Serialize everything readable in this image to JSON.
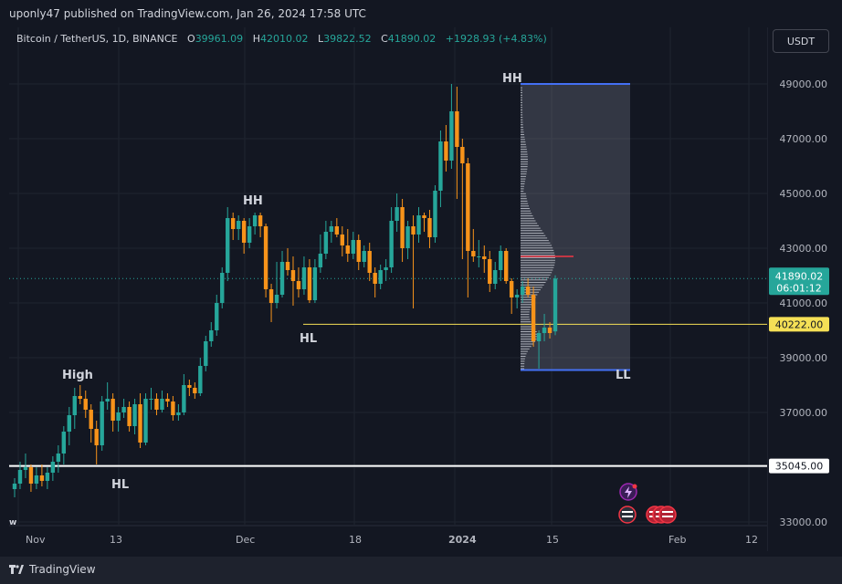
{
  "header": {
    "published": "uponly47 published on TradingView.com, Jan 26, 2024 17:58 UTC"
  },
  "legend": {
    "symbol": "Bitcoin / TetherUS, 1D, BINANCE",
    "o_label": "O",
    "o": "39961.09",
    "h_label": "H",
    "h": "42010.02",
    "l_label": "L",
    "l": "39822.52",
    "c_label": "C",
    "c": "41890.02",
    "change": "+1928.93 (+4.83%)"
  },
  "currency": "USDT",
  "footer": {
    "brand": "TradingView"
  },
  "colors": {
    "up": "#26a69a",
    "down": "#f7931a",
    "bg": "#131722",
    "box": "#4470f4",
    "yellow": "#f5e056",
    "red": "#f23645"
  },
  "chart_data": {
    "type": "candlestick",
    "y_ticks": [
      "49000.00",
      "47000.00",
      "45000.00",
      "43000.00",
      "41000.00",
      "39000.00",
      "37000.00",
      "35000.00",
      "33000.00"
    ],
    "x_ticks": [
      "Nov",
      "13",
      "Dec",
      "18",
      "2024",
      "15",
      "Feb",
      "12"
    ],
    "price_labels": {
      "last": "41890.02",
      "countdown": "06:01:12",
      "yellow_level": "40222.00",
      "white_level": "35045.00"
    },
    "annotations": [
      "High",
      "HL",
      "HH",
      "HL",
      "HH",
      "LL"
    ],
    "candles": [
      [
        34200,
        34600,
        33900,
        34400
      ],
      [
        34400,
        35200,
        34200,
        34900
      ],
      [
        34900,
        35500,
        34600,
        35000
      ],
      [
        35000,
        35100,
        34100,
        34400
      ],
      [
        34400,
        35000,
        34200,
        34700
      ],
      [
        34700,
        35100,
        34300,
        34500
      ],
      [
        34500,
        35000,
        34200,
        34800
      ],
      [
        34800,
        35400,
        34500,
        35200
      ],
      [
        35200,
        35800,
        34800,
        35500
      ],
      [
        35500,
        36500,
        35100,
        36300
      ],
      [
        36300,
        37200,
        35800,
        36900
      ],
      [
        36900,
        37900,
        36400,
        37600
      ],
      [
        37600,
        38000,
        37300,
        37500
      ],
      [
        37500,
        37800,
        36800,
        37100
      ],
      [
        37100,
        37300,
        35900,
        36400
      ],
      [
        36400,
        36700,
        35100,
        35800
      ],
      [
        35800,
        37600,
        35600,
        37400
      ],
      [
        37400,
        38100,
        37100,
        37500
      ],
      [
        37500,
        37700,
        36300,
        36700
      ],
      [
        36700,
        37200,
        36300,
        37000
      ],
      [
        37000,
        37500,
        36800,
        37200
      ],
      [
        37200,
        37400,
        36300,
        36500
      ],
      [
        36500,
        37500,
        36200,
        37300
      ],
      [
        37300,
        37700,
        35700,
        35900
      ],
      [
        35900,
        37700,
        35800,
        37500
      ],
      [
        37500,
        37900,
        37100,
        37500
      ],
      [
        37500,
        37700,
        36900,
        37100
      ],
      [
        37100,
        37800,
        37000,
        37500
      ],
      [
        37500,
        37700,
        37200,
        37400
      ],
      [
        37400,
        37600,
        36700,
        36900
      ],
      [
        36900,
        37300,
        36700,
        37000
      ],
      [
        37000,
        38400,
        36900,
        38000
      ],
      [
        38000,
        38200,
        37600,
        37900
      ],
      [
        37900,
        38100,
        37500,
        37700
      ],
      [
        37700,
        39000,
        37600,
        38700
      ],
      [
        38700,
        39800,
        38500,
        39600
      ],
      [
        39600,
        40300,
        39400,
        40000
      ],
      [
        40000,
        41300,
        39800,
        41000
      ],
      [
        41000,
        42300,
        40800,
        42100
      ],
      [
        42100,
        44500,
        41800,
        44100
      ],
      [
        44100,
        44300,
        43300,
        43700
      ],
      [
        43700,
        44200,
        43300,
        44000
      ],
      [
        44000,
        44100,
        42800,
        43200
      ],
      [
        43200,
        44100,
        43000,
        43800
      ],
      [
        43800,
        44300,
        43500,
        44200
      ],
      [
        44200,
        44300,
        43400,
        43800
      ],
      [
        43800,
        43900,
        41200,
        41500
      ],
      [
        41500,
        41700,
        40300,
        41000
      ],
      [
        41000,
        42500,
        40800,
        41300
      ],
      [
        41300,
        42900,
        41200,
        42500
      ],
      [
        42500,
        43000,
        42000,
        42200
      ],
      [
        42200,
        42700,
        40900,
        41800
      ],
      [
        41800,
        42300,
        41200,
        41500
      ],
      [
        41500,
        42700,
        41300,
        42300
      ],
      [
        42300,
        42600,
        41000,
        41100
      ],
      [
        41100,
        42600,
        41000,
        42300
      ],
      [
        42300,
        43500,
        42100,
        42800
      ],
      [
        42800,
        44000,
        42600,
        43600
      ],
      [
        43600,
        44000,
        43200,
        43800
      ],
      [
        43800,
        44100,
        43400,
        43500
      ],
      [
        43500,
        43800,
        42700,
        43100
      ],
      [
        43100,
        43700,
        42500,
        42800
      ],
      [
        42800,
        43600,
        42600,
        43300
      ],
      [
        43300,
        43500,
        42200,
        42500
      ],
      [
        42500,
        43100,
        42300,
        42900
      ],
      [
        42900,
        43200,
        41800,
        42100
      ],
      [
        42100,
        42300,
        41200,
        41700
      ],
      [
        41700,
        42400,
        41500,
        42200
      ],
      [
        42200,
        42600,
        41800,
        42300
      ],
      [
        42300,
        44500,
        42100,
        44000
      ],
      [
        44000,
        45000,
        43600,
        44500
      ],
      [
        44500,
        44800,
        42500,
        43000
      ],
      [
        43000,
        44000,
        42600,
        43800
      ],
      [
        43800,
        44200,
        40800,
        43500
      ],
      [
        43500,
        44500,
        43200,
        44200
      ],
      [
        44200,
        44300,
        43600,
        44100
      ],
      [
        44100,
        44400,
        43000,
        43400
      ],
      [
        43400,
        45300,
        43200,
        45100
      ],
      [
        45100,
        47300,
        44500,
        46900
      ],
      [
        46900,
        47500,
        45800,
        46200
      ],
      [
        46200,
        49000,
        45900,
        48000
      ],
      [
        48000,
        48900,
        44800,
        46700
      ],
      [
        46700,
        47000,
        42600,
        46100
      ],
      [
        46100,
        46300,
        41200,
        42900
      ],
      [
        42900,
        43700,
        42500,
        42700
      ],
      [
        42700,
        43300,
        42300,
        42700
      ],
      [
        42700,
        43100,
        42100,
        42600
      ],
      [
        42600,
        42900,
        41400,
        41700
      ],
      [
        41700,
        42500,
        41500,
        42200
      ],
      [
        42200,
        43100,
        41800,
        42900
      ],
      [
        42900,
        43000,
        41700,
        41800
      ],
      [
        41800,
        41900,
        40600,
        41200
      ],
      [
        41200,
        41500,
        40800,
        41300
      ],
      [
        41300,
        41800,
        41000,
        41600
      ],
      [
        41600,
        41900,
        41200,
        41300
      ],
      [
        41300,
        41600,
        39400,
        39600
      ],
      [
        39600,
        40000,
        38600,
        39900
      ],
      [
        39900,
        40600,
        39600,
        40100
      ],
      [
        40100,
        40300,
        39700,
        39900
      ],
      [
        39961.09,
        42010.02,
        39822.52,
        41890.02
      ]
    ]
  }
}
